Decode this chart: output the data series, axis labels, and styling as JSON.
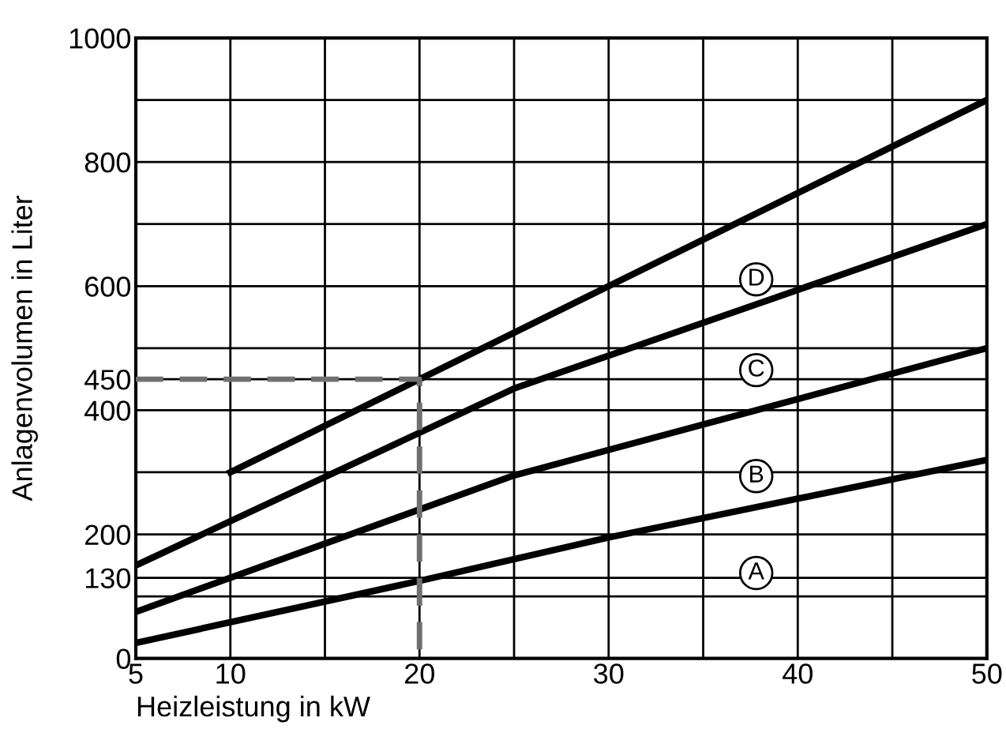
{
  "chart_data": {
    "type": "line",
    "xlabel": "Heizleistung in kW",
    "ylabel": "Anlagenvolumen in Liter",
    "series": [
      {
        "name": "A",
        "color": "#000000",
        "x": [
          5,
          20,
          30,
          50
        ],
        "values": [
          25,
          125,
          195,
          320
        ]
      },
      {
        "name": "B",
        "color": "#000000",
        "x": [
          5,
          25,
          50
        ],
        "values": [
          75,
          295,
          500
        ]
      },
      {
        "name": "C",
        "color": "#000000",
        "x": [
          5,
          25,
          50
        ],
        "values": [
          150,
          435,
          700
        ]
      },
      {
        "name": "D",
        "color": "#000000",
        "x": [
          10,
          50
        ],
        "values": [
          300,
          900
        ]
      },
      {
        "name": null,
        "color": "#707070",
        "x": [
          5,
          20,
          20
        ],
        "values": [
          450,
          450,
          0
        ],
        "line_style": "dashed"
      }
    ],
    "xlim": [
      5,
      50
    ],
    "xticks": [
      5,
      10,
      {
        "value": 15,
        "label": null
      },
      20,
      {
        "value": 25,
        "label": null
      },
      30,
      {
        "value": 35,
        "label": null
      },
      40,
      {
        "value": 45,
        "label": null
      },
      50
    ],
    "ylim": [
      0,
      1000
    ],
    "yticks": [
      0,
      {
        "value": 100,
        "label": null
      },
      130,
      200,
      {
        "value": 300,
        "label": null
      },
      400,
      450,
      {
        "value": 500,
        "label": null
      },
      600,
      {
        "value": 700,
        "label": null
      },
      800,
      {
        "value": 900,
        "label": null
      },
      1000
    ],
    "grid": true,
    "legend": false,
    "marker": "none",
    "line_style": "solid"
  }
}
